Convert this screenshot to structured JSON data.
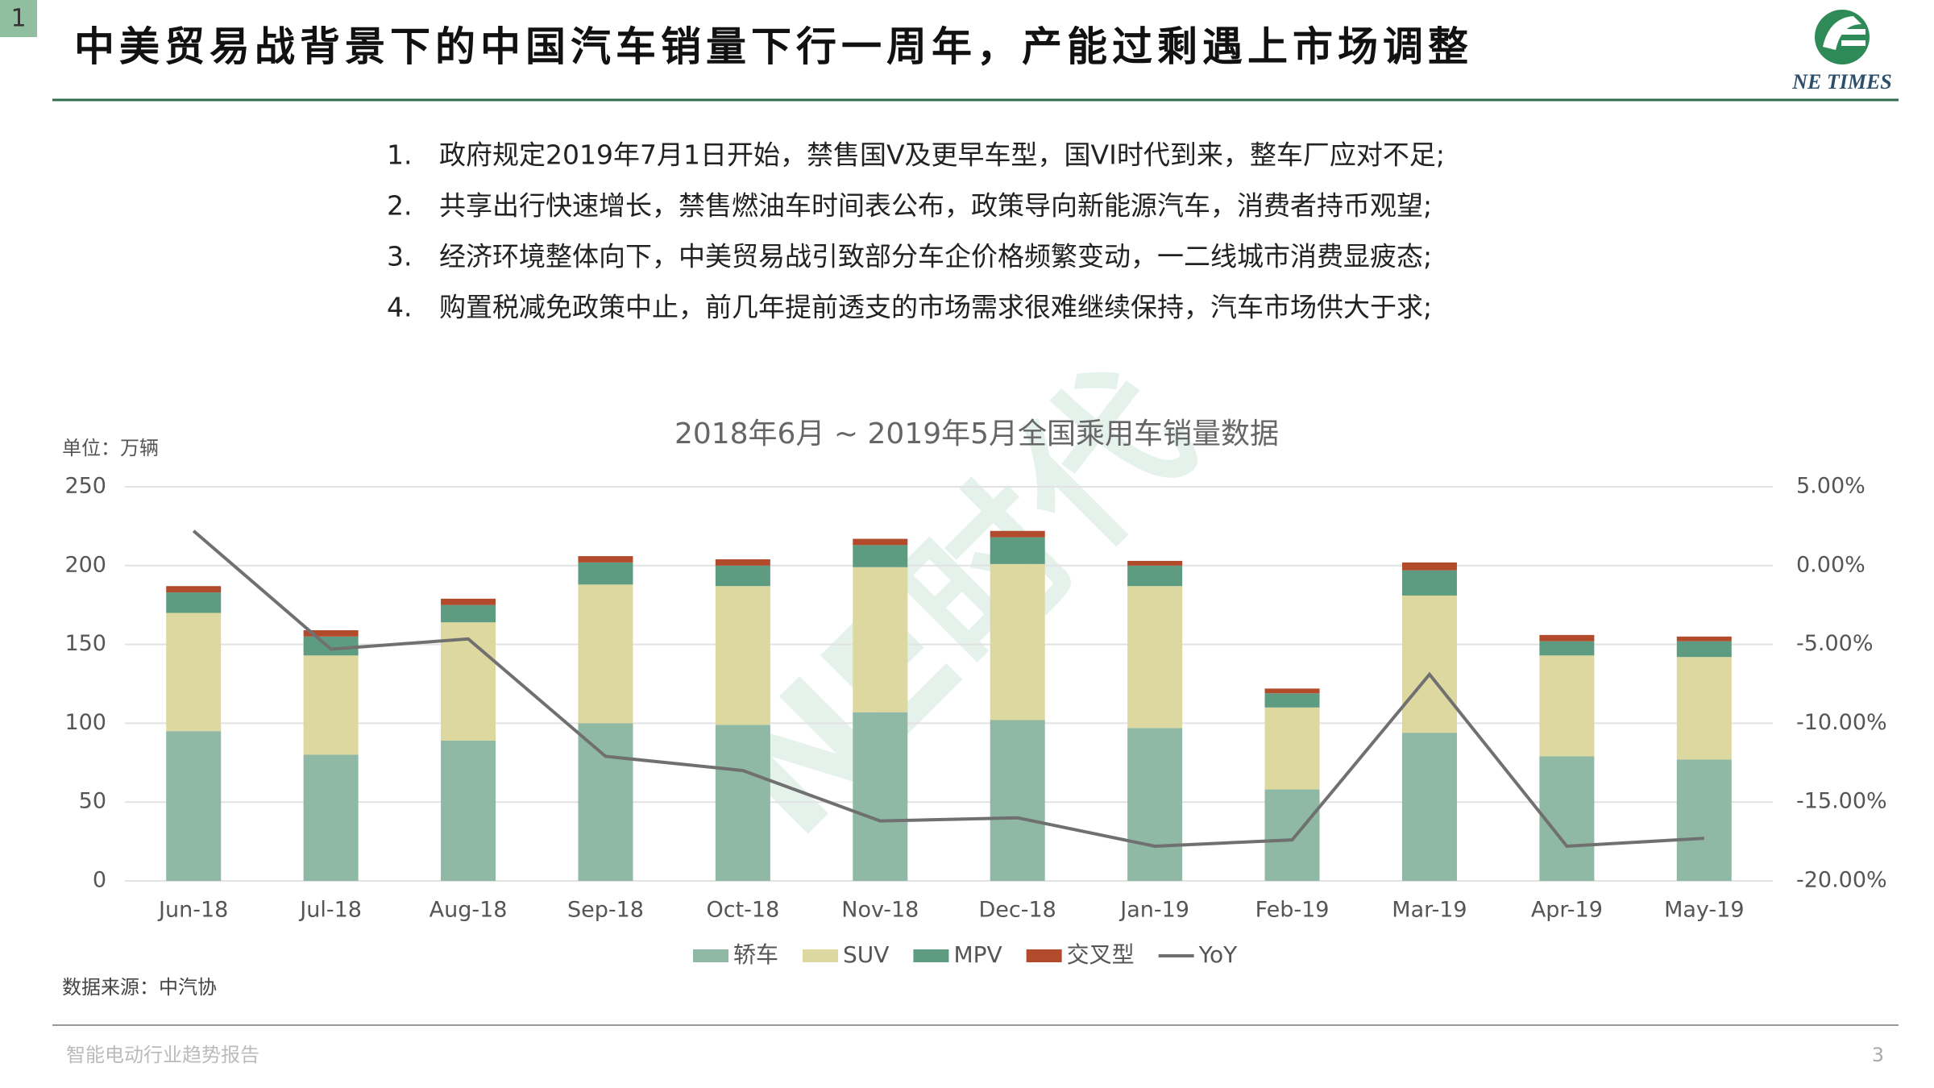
{
  "slide_number": "1",
  "title": "中美贸易战背景下的中国汽车销量下行一周年，产能过剩遇上市场调整",
  "logo_text": "NE TIMES",
  "bullets": [
    {
      "number": "1.",
      "text": "政府规定2019年7月1日开始，禁售国V及更早车型，国VI时代到来，整车厂应对不足;"
    },
    {
      "number": "2.",
      "text": "共享出行快速增长，禁售燃油车时间表公布，政策导向新能源汽车，消费者持币观望;"
    },
    {
      "number": "3.",
      "text": "经济环境整体向下，中美贸易战引致部分车企价格频繁变动，一二线城市消费显疲态;"
    },
    {
      "number": "4.",
      "text": "购置税减免政策中止，前几年提前透支的市场需求很难继续保持，汽车市场供大于求;"
    }
  ],
  "watermark": "NE时代",
  "chart_data": {
    "type": "bar",
    "stacked": true,
    "title": "2018年6月 ~ 2019年5月全国乘用车销量数据",
    "y_unit_label": "单位：万辆",
    "source": "数据来源：中汽协",
    "categories": [
      "Jun-18",
      "Jul-18",
      "Aug-18",
      "Sep-18",
      "Oct-18",
      "Nov-18",
      "Dec-18",
      "Jan-19",
      "Feb-19",
      "Mar-19",
      "Apr-19",
      "May-19"
    ],
    "series": [
      {
        "name": "轿车",
        "color": "#8fb9a4",
        "values": [
          95,
          80,
          89,
          100,
          99,
          107,
          102,
          97,
          58,
          94,
          79,
          77
        ]
      },
      {
        "name": "SUV",
        "color": "#ddd8a0",
        "values": [
          75,
          63,
          75,
          88,
          88,
          92,
          99,
          90,
          52,
          87,
          64,
          65
        ]
      },
      {
        "name": "MPV",
        "color": "#5e9c82",
        "values": [
          13,
          12,
          11,
          14,
          13,
          14,
          17,
          13,
          9,
          16,
          9,
          10
        ]
      },
      {
        "name": "交叉型",
        "color": "#b24a2c",
        "values": [
          4,
          4,
          4,
          4,
          4,
          4,
          4,
          3,
          3,
          5,
          4,
          3
        ]
      },
      {
        "name": "YoY",
        "color": "#707070",
        "type": "line",
        "axis": "y2",
        "values": [
          2.2,
          -5.3,
          -4.65,
          -12.1,
          -13.0,
          -16.2,
          -16.0,
          -17.8,
          -17.4,
          -6.9,
          -17.8,
          -17.3
        ]
      }
    ],
    "ylim": [
      0,
      250
    ],
    "yticks": [
      0,
      50,
      100,
      150,
      200,
      250
    ],
    "y2lim": [
      -20,
      5
    ],
    "y2ticks": [
      {
        "value": -20,
        "label": "-20.00%"
      },
      {
        "value": -15,
        "label": "-15.00%"
      },
      {
        "value": -10,
        "label": "-10.00%"
      },
      {
        "value": -5,
        "label": "-5.00%"
      },
      {
        "value": 0,
        "label": "0.00%"
      },
      {
        "value": 5,
        "label": "5.00%"
      }
    ],
    "grid": true,
    "legend": "bottom"
  },
  "footer": {
    "text": "智能电动行业趋势报告",
    "page": "3"
  }
}
